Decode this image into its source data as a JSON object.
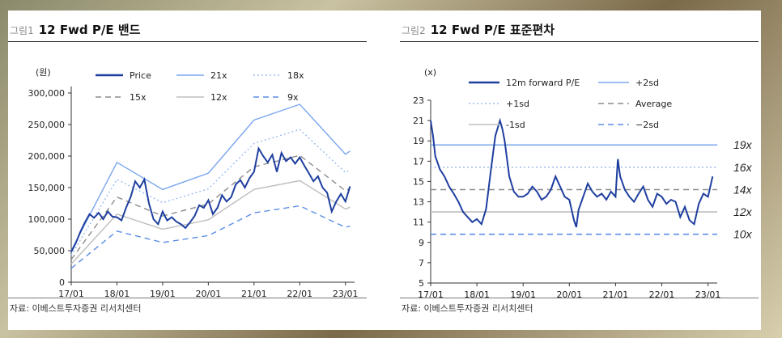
{
  "fig1": {
    "number": "그림1",
    "title": "12 Fwd P/E 밴드",
    "source": "자료: 이베스트투자증권 리서치센터",
    "unit": "(원)",
    "colors": {
      "price": "#1f3f9f",
      "b21": "#7aa6ee",
      "b18": "#9cbcf0",
      "b15": "#8c8c8c",
      "b12": "#bdbdbd",
      "b9": "#5b8ee6"
    }
  },
  "fig2": {
    "number": "그림2",
    "title": "12 Fwd P/E 표준편차",
    "source": "자료: 이베스트투자증권 리서치센터",
    "unit": "(x)",
    "right_labels": [
      "19x",
      "16x",
      "14x",
      "12x",
      "10x"
    ],
    "colors": {
      "line": "#1f3f9f",
      "p2": "#7aa6ee",
      "p1": "#9cbcf0",
      "avg": "#8c8c8c",
      "m1": "#bdbdbd",
      "m2": "#5b8ee6"
    }
  },
  "chart_data": [
    {
      "type": "line",
      "title": "12 Fwd P/E 밴드",
      "ylabel": "(원)",
      "ylim": [
        0,
        300000
      ],
      "yticks": [
        0,
        50000,
        100000,
        150000,
        200000,
        250000,
        300000
      ],
      "ytick_labels": [
        "0",
        "50,000",
        "100,000",
        "150,000",
        "200,000",
        "250,000",
        "300,000"
      ],
      "xticks": [
        2017,
        2018,
        2019,
        2020,
        2021,
        2022,
        2023
      ],
      "xtick_labels": [
        "17/01",
        "18/01",
        "19/01",
        "20/01",
        "21/01",
        "22/01",
        "23/01"
      ],
      "xlim": [
        2017,
        2023.2
      ],
      "legend": [
        "Price",
        "21x",
        "18x",
        "15x",
        "12x",
        "9x"
      ],
      "legend_position": "top",
      "series": [
        {
          "name": "21x",
          "style": "solid",
          "x": [
            2017,
            2018,
            2019,
            2020,
            2021,
            2022,
            2023,
            2023.1
          ],
          "values": [
            50000,
            190000,
            147000,
            173000,
            257000,
            282000,
            203000,
            208000
          ]
        },
        {
          "name": "18x",
          "style": "dotted",
          "x": [
            2017,
            2018,
            2019,
            2020,
            2021,
            2022,
            2023,
            2023.1
          ],
          "values": [
            43000,
            163000,
            126000,
            148000,
            220000,
            242000,
            174000,
            178000
          ]
        },
        {
          "name": "15x",
          "style": "dashed",
          "x": [
            2017,
            2018,
            2019,
            2020,
            2021,
            2022,
            2023,
            2023.1
          ],
          "values": [
            36000,
            135000,
            105000,
            124000,
            183000,
            201000,
            145000,
            149000
          ]
        },
        {
          "name": "12x",
          "style": "solid",
          "x": [
            2017,
            2018,
            2019,
            2020,
            2021,
            2022,
            2023,
            2023.1
          ],
          "values": [
            29000,
            108000,
            84000,
            99000,
            147000,
            161000,
            116000,
            119000
          ]
        },
        {
          "name": "9x",
          "style": "dashed",
          "x": [
            2017,
            2018,
            2019,
            2020,
            2021,
            2022,
            2023,
            2023.1
          ],
          "values": [
            22000,
            81000,
            63000,
            74000,
            110000,
            121000,
            87000,
            89000
          ]
        },
        {
          "name": "Price",
          "style": "solid",
          "x": [
            2017,
            2017.1,
            2017.2,
            2017.3,
            2017.4,
            2017.5,
            2017.6,
            2017.7,
            2017.8,
            2017.9,
            2018,
            2018.1,
            2018.2,
            2018.3,
            2018.4,
            2018.5,
            2018.6,
            2018.7,
            2018.8,
            2018.9,
            2019,
            2019.1,
            2019.2,
            2019.3,
            2019.4,
            2019.5,
            2019.6,
            2019.7,
            2019.8,
            2019.9,
            2020,
            2020.1,
            2020.2,
            2020.3,
            2020.4,
            2020.5,
            2020.6,
            2020.7,
            2020.8,
            2020.9,
            2021,
            2021.1,
            2021.2,
            2021.3,
            2021.4,
            2021.5,
            2021.6,
            2021.7,
            2021.8,
            2021.9,
            2022,
            2022.1,
            2022.2,
            2022.3,
            2022.4,
            2022.5,
            2022.6,
            2022.7,
            2022.8,
            2022.9,
            2023,
            2023.1
          ],
          "values": [
            48000,
            62000,
            80000,
            95000,
            108000,
            102000,
            110000,
            100000,
            112000,
            104000,
            103000,
            98000,
            118000,
            135000,
            160000,
            150000,
            163000,
            125000,
            100000,
            92000,
            112000,
            98000,
            103000,
            96000,
            92000,
            86000,
            95000,
            105000,
            122000,
            118000,
            130000,
            108000,
            118000,
            138000,
            128000,
            135000,
            155000,
            162000,
            150000,
            165000,
            175000,
            212000,
            200000,
            190000,
            202000,
            175000,
            205000,
            192000,
            198000,
            188000,
            198000,
            185000,
            173000,
            160000,
            168000,
            150000,
            142000,
            112000,
            128000,
            140000,
            128000,
            152000
          ]
        }
      ]
    },
    {
      "type": "line",
      "title": "12 Fwd P/E 표준편차",
      "ylabel": "(x)",
      "ylim": [
        5,
        23
      ],
      "yticks": [
        5,
        7,
        9,
        11,
        13,
        15,
        17,
        19,
        21,
        23
      ],
      "xticks": [
        2017,
        2018,
        2019,
        2020,
        2021,
        2022,
        2023
      ],
      "xtick_labels": [
        "17/01",
        "18/01",
        "19/01",
        "20/01",
        "21/01",
        "22/01",
        "23/01"
      ],
      "xlim": [
        2017,
        2023.2
      ],
      "legend": [
        "12m forward P/E",
        "+2sd",
        "+1sd",
        "Average",
        "-1sd",
        "−2sd"
      ],
      "legend_position": "top",
      "bands": [
        {
          "name": "+2sd",
          "value": 18.6,
          "style": "solid"
        },
        {
          "name": "+1sd",
          "value": 16.4,
          "style": "dotted"
        },
        {
          "name": "Average",
          "value": 14.2,
          "style": "dashed"
        },
        {
          "name": "-1sd",
          "value": 12.0,
          "style": "solid"
        },
        {
          "name": "−2sd",
          "value": 9.8,
          "style": "dashed"
        }
      ],
      "series": [
        {
          "name": "12m forward P/E",
          "x": [
            2017,
            2017.05,
            2017.1,
            2017.2,
            2017.3,
            2017.4,
            2017.5,
            2017.6,
            2017.7,
            2017.8,
            2017.9,
            2018,
            2018.1,
            2018.2,
            2018.3,
            2018.4,
            2018.5,
            2018.55,
            2018.6,
            2018.7,
            2018.8,
            2018.9,
            2019,
            2019.1,
            2019.2,
            2019.3,
            2019.4,
            2019.5,
            2019.6,
            2019.7,
            2019.8,
            2019.9,
            2020,
            2020.1,
            2020.15,
            2020.2,
            2020.3,
            2020.4,
            2020.5,
            2020.6,
            2020.7,
            2020.8,
            2020.9,
            2021,
            2021.05,
            2021.1,
            2021.2,
            2021.3,
            2021.4,
            2021.5,
            2021.6,
            2021.7,
            2021.8,
            2021.9,
            2022,
            2022.1,
            2022.2,
            2022.3,
            2022.4,
            2022.5,
            2022.6,
            2022.7,
            2022.8,
            2022.9,
            2023,
            2023.1
          ],
          "values": [
            21,
            19.5,
            17.5,
            16.2,
            15.5,
            14.5,
            13.8,
            13.0,
            12.0,
            11.5,
            11.0,
            11.3,
            10.8,
            12.3,
            16.0,
            19.5,
            21.0,
            20.2,
            19.0,
            15.5,
            14.0,
            13.5,
            13.5,
            13.8,
            14.5,
            14.0,
            13.2,
            13.5,
            14.2,
            15.5,
            14.5,
            13.5,
            13.2,
            11.2,
            10.5,
            12.2,
            13.5,
            14.8,
            14.0,
            13.5,
            13.8,
            13.2,
            14.0,
            13.5,
            17.2,
            15.5,
            14.2,
            13.5,
            13.0,
            13.8,
            14.5,
            13.2,
            12.5,
            13.8,
            13.5,
            12.8,
            13.2,
            13.0,
            11.5,
            12.5,
            11.2,
            10.8,
            12.8,
            13.8,
            13.5,
            15.5
          ]
        }
      ]
    }
  ]
}
